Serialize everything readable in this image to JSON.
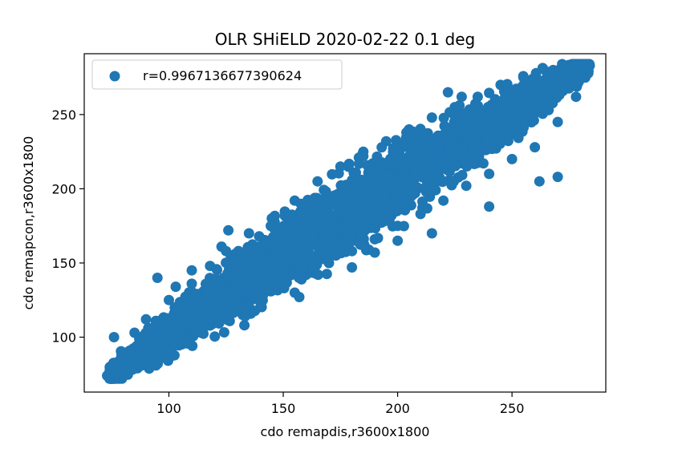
{
  "chart_data": {
    "type": "scatter",
    "title": "OLR SHiELD 2020-02-22 0.1 deg",
    "xlabel": "cdo remapdis,r3600x1800",
    "ylabel": "cdo remapcon,r3600x1800",
    "xlim": [
      63,
      291
    ],
    "ylim": [
      63,
      291
    ],
    "xticks": [
      100,
      150,
      200,
      250
    ],
    "yticks": [
      100,
      150,
      200,
      250
    ],
    "grid": false,
    "legend": {
      "placement": "top-left",
      "entries": [
        "r=0.9967136677390624"
      ]
    },
    "color": "#1f77b4",
    "series": [
      {
        "name": "r=0.9967136677390624",
        "points": [
          [
            73,
            74
          ],
          [
            75,
            78
          ],
          [
            77,
            82
          ],
          [
            80,
            86
          ],
          [
            82,
            90
          ],
          [
            85,
            92
          ],
          [
            88,
            97
          ],
          [
            90,
            100
          ],
          [
            93,
            104
          ],
          [
            96,
            108
          ],
          [
            100,
            112
          ],
          [
            104,
            118
          ],
          [
            108,
            122
          ],
          [
            112,
            127
          ],
          [
            116,
            131
          ],
          [
            120,
            135
          ],
          [
            124,
            140
          ],
          [
            128,
            145
          ],
          [
            132,
            150
          ],
          [
            136,
            155
          ],
          [
            140,
            160
          ],
          [
            145,
            165
          ],
          [
            150,
            170
          ],
          [
            155,
            175
          ],
          [
            160,
            180
          ],
          [
            165,
            185
          ],
          [
            170,
            190
          ],
          [
            175,
            195
          ],
          [
            180,
            200
          ],
          [
            185,
            204
          ],
          [
            190,
            208
          ],
          [
            195,
            213
          ],
          [
            200,
            218
          ],
          [
            205,
            222
          ],
          [
            210,
            227
          ],
          [
            215,
            232
          ],
          [
            220,
            236
          ],
          [
            225,
            240
          ],
          [
            230,
            244
          ],
          [
            235,
            249
          ],
          [
            240,
            253
          ],
          [
            245,
            257
          ],
          [
            250,
            261
          ],
          [
            255,
            265
          ],
          [
            260,
            268
          ],
          [
            265,
            272
          ],
          [
            270,
            276
          ],
          [
            275,
            279
          ],
          [
            280,
            282
          ],
          [
            284,
            283
          ],
          [
            85,
            103
          ],
          [
            90,
            112
          ],
          [
            100,
            125
          ],
          [
            110,
            136
          ],
          [
            118,
            148
          ],
          [
            125,
            158
          ],
          [
            135,
            170
          ],
          [
            145,
            180
          ],
          [
            155,
            192
          ],
          [
            165,
            205
          ],
          [
            175,
            215
          ],
          [
            185,
            222
          ],
          [
            195,
            232
          ],
          [
            205,
            240
          ],
          [
            215,
            248
          ],
          [
            225,
            255
          ],
          [
            235,
            262
          ],
          [
            245,
            270
          ],
          [
            255,
            275
          ],
          [
            265,
            279
          ],
          [
            80,
            78
          ],
          [
            90,
            88
          ],
          [
            100,
            97
          ],
          [
            110,
            105
          ],
          [
            120,
            112
          ],
          [
            130,
            120
          ],
          [
            140,
            128
          ],
          [
            150,
            135
          ],
          [
            160,
            142
          ],
          [
            170,
            150
          ],
          [
            180,
            158
          ],
          [
            190,
            166
          ],
          [
            200,
            175
          ],
          [
            210,
            183
          ],
          [
            220,
            192
          ],
          [
            230,
            202
          ],
          [
            240,
            210
          ],
          [
            250,
            220
          ],
          [
            260,
            228
          ],
          [
            270,
            245
          ],
          [
            278,
            262
          ],
          [
            76,
            100
          ],
          [
            95,
            140
          ],
          [
            103,
            134
          ],
          [
            110,
            145
          ],
          [
            123,
            161
          ],
          [
            126,
            172
          ],
          [
            145,
            175
          ],
          [
            185,
            225
          ],
          [
            198,
            225
          ],
          [
            222,
            265
          ],
          [
            228,
            262
          ],
          [
            250,
            265
          ],
          [
            268,
            280
          ],
          [
            114,
            115
          ],
          [
            120,
            110
          ],
          [
            133,
            108
          ],
          [
            155,
            130
          ],
          [
            157,
            127
          ],
          [
            173,
            155
          ],
          [
            180,
            147
          ],
          [
            190,
            157
          ],
          [
            200,
            165
          ],
          [
            215,
            170
          ],
          [
            240,
            188
          ],
          [
            262,
            205
          ],
          [
            270,
            208
          ]
        ]
      }
    ]
  }
}
